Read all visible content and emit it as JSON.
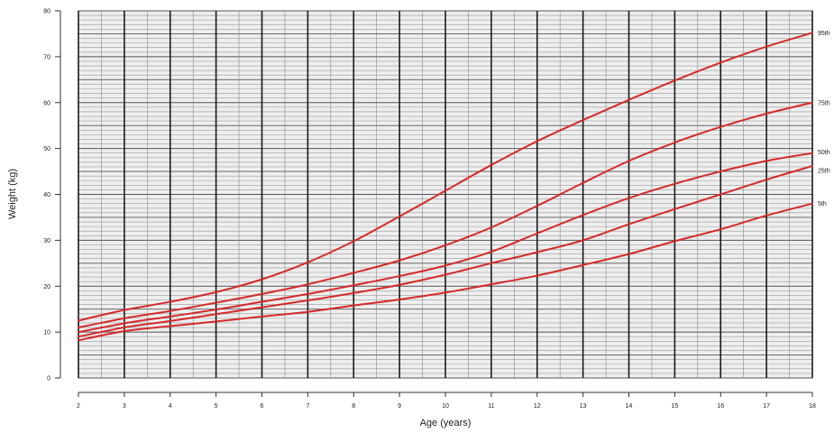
{
  "chart_data": {
    "type": "line",
    "title": "",
    "xlabel": "Age (years)",
    "ylabel": "Weight (kg)",
    "xlim": [
      2,
      18
    ],
    "ylim": [
      0,
      80
    ],
    "x_ticks": [
      2,
      3,
      4,
      5,
      6,
      7,
      8,
      9,
      10,
      11,
      12,
      13,
      14,
      15,
      16,
      17,
      18
    ],
    "y_ticks": [
      0,
      10,
      20,
      30,
      40,
      50,
      60,
      70,
      80
    ],
    "grid": true,
    "legend": "none",
    "series_color": "#d42a2a",
    "x": [
      2,
      3,
      4,
      5,
      6,
      7,
      8,
      9,
      10,
      11,
      12,
      13,
      14,
      15,
      16,
      17,
      18
    ],
    "series": [
      {
        "name": "95th",
        "values": [
          12.5,
          14.8,
          16.6,
          18.7,
          21.5,
          25.2,
          29.8,
          35.2,
          40.8,
          46.4,
          51.6,
          56.2,
          60.6,
          64.8,
          68.7,
          72.2,
          75.2
        ]
      },
      {
        "name": "75th",
        "values": [
          11.0,
          13.0,
          14.6,
          16.4,
          18.3,
          20.4,
          22.9,
          25.6,
          28.9,
          32.8,
          37.5,
          42.5,
          47.3,
          51.3,
          54.7,
          57.6,
          60.0
        ]
      },
      {
        "name": "50th",
        "values": [
          10.0,
          11.9,
          13.4,
          14.9,
          16.6,
          18.3,
          20.2,
          22.2,
          24.5,
          27.5,
          31.5,
          35.5,
          39.2,
          42.3,
          45.0,
          47.3,
          49.0
        ]
      },
      {
        "name": "25th",
        "values": [
          9.0,
          11.0,
          12.4,
          13.9,
          15.4,
          16.9,
          18.5,
          20.3,
          22.5,
          25.0,
          27.4,
          30.0,
          33.5,
          36.8,
          40.0,
          43.2,
          46.2
        ]
      },
      {
        "name": "5th",
        "values": [
          8.2,
          10.2,
          11.3,
          12.3,
          13.4,
          14.4,
          15.8,
          17.1,
          18.6,
          20.4,
          22.3,
          24.6,
          27.0,
          29.8,
          32.4,
          35.4,
          38.0
        ]
      }
    ]
  }
}
